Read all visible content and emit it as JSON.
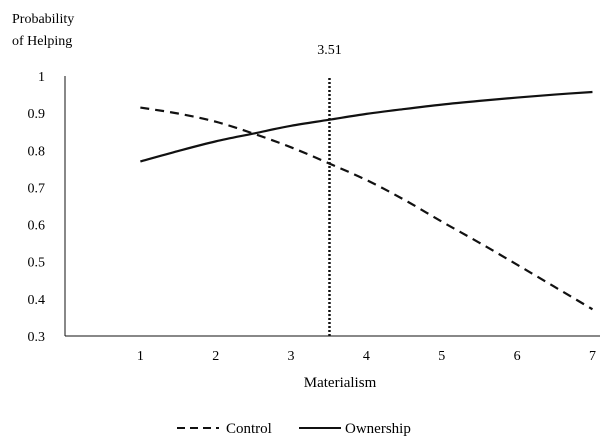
{
  "chart_data": {
    "type": "line",
    "ylabel": [
      "Probability",
      "of Helping"
    ],
    "xlabel": "Materialism",
    "xlim": [
      0,
      7.1
    ],
    "ylim": [
      0.3,
      1
    ],
    "x_ticks": [
      1,
      2,
      3,
      4,
      5,
      6,
      7
    ],
    "y_ticks": [
      0.3,
      0.4,
      0.5,
      0.6,
      0.7,
      0.8,
      0.9,
      1
    ],
    "y_tick_labels": [
      "0.3",
      "0.4",
      "0.5",
      "0.6",
      "0.7",
      "0.8",
      "0.9",
      "1"
    ],
    "x": [
      1,
      1.5,
      2,
      2.5,
      3,
      3.5,
      4,
      4.5,
      5,
      5.5,
      6,
      6.5,
      7
    ],
    "series": [
      {
        "name": "Control",
        "style": "dashed",
        "color": "#111111",
        "values": [
          0.915,
          0.899,
          0.877,
          0.845,
          0.808,
          0.765,
          0.72,
          0.667,
          0.608,
          0.551,
          0.492,
          0.432,
          0.372
        ]
      },
      {
        "name": "Ownership",
        "style": "solid",
        "color": "#111111",
        "values": [
          0.77,
          0.798,
          0.824,
          0.845,
          0.866,
          0.882,
          0.898,
          0.911,
          0.923,
          0.933,
          0.942,
          0.95,
          0.957
        ]
      }
    ],
    "annotations": [
      {
        "type": "vline",
        "x": 3.51,
        "label": "3.51",
        "style": "dotted"
      }
    ],
    "grid": false,
    "legend": "bottom-center"
  }
}
